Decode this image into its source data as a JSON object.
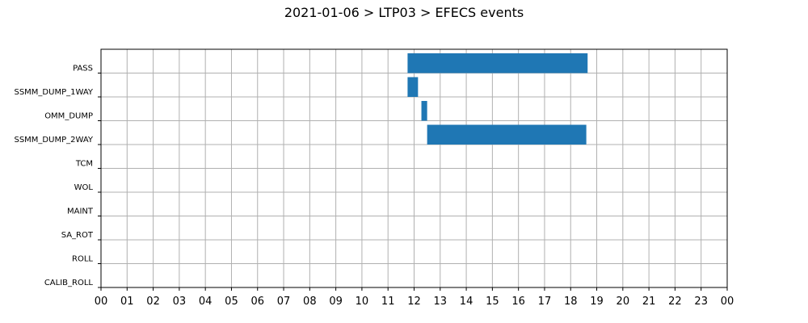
{
  "chart_data": {
    "type": "bar",
    "title": "2021-01-06 > LTP03 > EFECS events",
    "xlabel": "",
    "ylabel": "",
    "x_tick_labels": [
      "00",
      "01",
      "02",
      "03",
      "04",
      "05",
      "06",
      "07",
      "08",
      "09",
      "10",
      "11",
      "12",
      "13",
      "14",
      "15",
      "16",
      "17",
      "18",
      "19",
      "20",
      "21",
      "22",
      "23",
      "00"
    ],
    "xlim": [
      0,
      24
    ],
    "categories": [
      "PASS",
      "SSMM_DUMP_1WAY",
      "OMM_DUMP",
      "SSMM_DUMP_2WAY",
      "TCM",
      "WOL",
      "MAINT",
      "SA_ROT",
      "ROLL",
      "CALIB_ROLL"
    ],
    "intervals": [
      {
        "category": "PASS",
        "start": 11.75,
        "end": 18.65
      },
      {
        "category": "SSMM_DUMP_1WAY",
        "start": 11.75,
        "end": 12.15
      },
      {
        "category": "OMM_DUMP",
        "start": 12.28,
        "end": 12.5
      },
      {
        "category": "SSMM_DUMP_2WAY",
        "start": 12.5,
        "end": 18.6
      }
    ],
    "grid": true,
    "colors": {
      "bar": "#1f77b4",
      "grid": "#b0b0b0"
    }
  }
}
